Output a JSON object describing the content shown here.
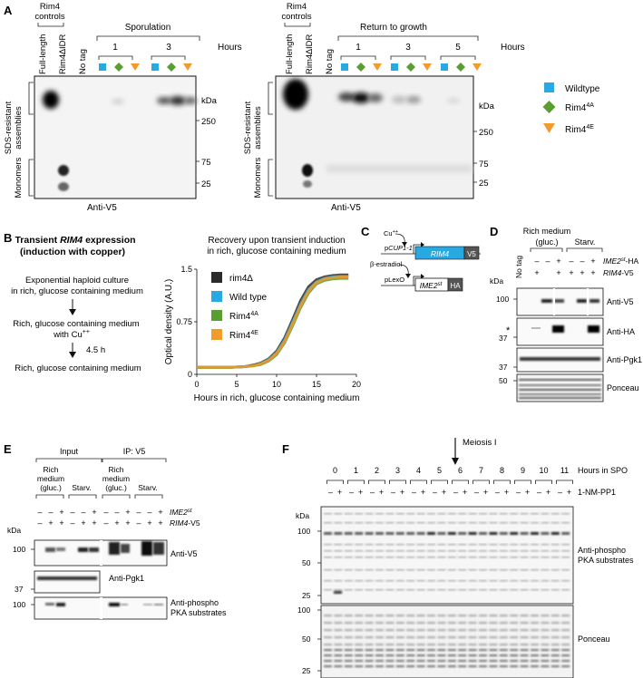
{
  "panels": {
    "a": "A",
    "b": "B",
    "c": "C",
    "d": "D",
    "e": "E",
    "f": "F"
  },
  "panel_a": {
    "rim4_controls": [
      "Rim4",
      "controls"
    ],
    "lanes_ctrl": [
      "Full-length",
      "Rim4∆IDR",
      "No tag"
    ],
    "sporulation": "Sporulation",
    "return_to_growth": "Return to growth",
    "hours": "Hours",
    "spo_hours": [
      "1",
      "3"
    ],
    "rtg_hours": [
      "1",
      "3",
      "5"
    ],
    "sds_label": [
      "SDS-resistant",
      "assemblies"
    ],
    "monomers": "Monomers",
    "kda": "kDa",
    "markers": [
      "250",
      "75",
      "25"
    ],
    "anti_v5": "Anti-V5",
    "legend": [
      "Wildtype",
      "Rim4",
      "Rim4"
    ],
    "legend_sup": [
      "",
      "4A",
      "4E"
    ],
    "colors": {
      "wt": "#29a9e1",
      "r4a": "#5a9e32",
      "r4e": "#f39a2c"
    }
  },
  "panel_b": {
    "title_a": "Transient ",
    "title_b": "RIM4",
    "title_c": " expression",
    "title2": "(induction with copper)",
    "step1": [
      "Exponential haploid culture",
      "in rich, glucose containing medium"
    ],
    "step2": [
      "Rich, glucose containing medium",
      "with Cu"
    ],
    "cu_sup": "++",
    "time": "4.5 h",
    "step3": "Rich, glucose containing medium",
    "chart_title": [
      "Recovery upon transient induction",
      "in rich, glucose containing medium"
    ]
  },
  "chart_data": {
    "type": "line",
    "title": "Recovery upon transient induction in rich, glucose containing medium",
    "xlabel": "Hours in rich, glucose containing medium",
    "ylabel": "Optical density (A.U.)",
    "xlim": [
      0,
      20
    ],
    "ylim": [
      0,
      1.5
    ],
    "xticks": [
      "0",
      "5",
      "10",
      "15",
      "20"
    ],
    "yticks": [
      "0",
      "0.75",
      "1.5"
    ],
    "x": [
      0,
      2,
      4,
      6,
      7,
      8,
      9,
      10,
      11,
      12,
      13,
      14,
      15,
      16,
      17,
      18,
      19
    ],
    "series": [
      {
        "name": "rim4∆",
        "color": "#2b2b2b",
        "values": [
          0.1,
          0.1,
          0.1,
          0.11,
          0.13,
          0.16,
          0.22,
          0.33,
          0.52,
          0.78,
          1.05,
          1.25,
          1.35,
          1.39,
          1.41,
          1.42,
          1.42
        ]
      },
      {
        "name": "Wild type",
        "color": "#29a9e1",
        "values": [
          0.1,
          0.1,
          0.1,
          0.11,
          0.12,
          0.15,
          0.21,
          0.31,
          0.49,
          0.74,
          1.0,
          1.21,
          1.32,
          1.37,
          1.39,
          1.4,
          1.4
        ]
      },
      {
        "name": "Rim4",
        "sup": "4A",
        "color": "#5a9e32",
        "values": [
          0.1,
          0.1,
          0.1,
          0.11,
          0.12,
          0.14,
          0.19,
          0.28,
          0.45,
          0.69,
          0.95,
          1.16,
          1.29,
          1.34,
          1.36,
          1.37,
          1.37
        ]
      },
      {
        "name": "Rim4",
        "sup": "4E",
        "color": "#f39a2c",
        "values": [
          0.1,
          0.1,
          0.1,
          0.11,
          0.12,
          0.15,
          0.2,
          0.3,
          0.47,
          0.72,
          0.98,
          1.19,
          1.31,
          1.36,
          1.38,
          1.39,
          1.39
        ]
      }
    ]
  },
  "panel_c": {
    "cu": "Cu",
    "cu_sup": "++",
    "promoter1_pre": "p",
    "promoter1_it": "CUP1-1",
    "gene1": "RIM4",
    "tag1": "V5",
    "estradiol": "β-estradiol",
    "promoter2": "pLexO",
    "gene2": "IME2",
    "gene2_sup": "st",
    "tag2": "HA"
  },
  "panel_d": {
    "rich": [
      "Rich medium",
      "(gluc.)"
    ],
    "starv": "Starv.",
    "no_tag": "No tag",
    "ime2_row": [
      "–",
      "–",
      "+",
      "–",
      "–",
      "+"
    ],
    "rim4_row": [
      "+",
      "+",
      "+",
      "+",
      "+"
    ],
    "ime2_label": "IME2",
    "ime2_sup": "st",
    "ime2_suffix": "-HA",
    "rim4_label": "RIM4",
    "rim4_suffix": "-V5",
    "kda": "kDa",
    "markers": [
      "100",
      "37",
      "37",
      "50"
    ],
    "asterisk": "*",
    "blots": [
      "Anti-V5",
      "Anti-HA",
      "Anti-Pgk1",
      "Ponceau"
    ]
  },
  "panel_e": {
    "input": "Input",
    "ip": "IP: V5",
    "rich": [
      "Rich",
      "medium",
      "(gluc.)"
    ],
    "starv": "Starv.",
    "ime2_row": [
      "–",
      "–",
      "+",
      "–",
      "–",
      "+",
      "–",
      "–",
      "+",
      "–",
      "–",
      "+"
    ],
    "rim4_row": [
      "–",
      "+",
      "+",
      "–",
      "+",
      "+",
      "–",
      "+",
      "+",
      "–",
      "+",
      "+"
    ],
    "ime2_label": "IME2",
    "ime2_sup": "st",
    "rim4_label": "RIM4",
    "rim4_suffix": "-V5",
    "kda": "kDa",
    "markers": [
      "100",
      "37",
      "100"
    ],
    "blots": [
      "Anti-V5",
      "Anti-Pgk1",
      "Anti-phospho",
      "PKA substrates"
    ]
  },
  "panel_f": {
    "meiosis": "Meiosis I",
    "hours": [
      "0",
      "1",
      "2",
      "3",
      "4",
      "5",
      "6",
      "7",
      "8",
      "9",
      "10",
      "11"
    ],
    "hours_label": "Hours in SPO",
    "drug_row_minus": "–",
    "drug_row_plus": "+",
    "drug_label": "1-NM-PP1",
    "kda": "kDa",
    "markers_top": [
      "100",
      "50",
      "25"
    ],
    "markers_bottom": [
      "100",
      "50",
      "25"
    ],
    "blot1": [
      "Anti-phospho",
      "PKA substrates"
    ],
    "blot2": "Ponceau"
  }
}
